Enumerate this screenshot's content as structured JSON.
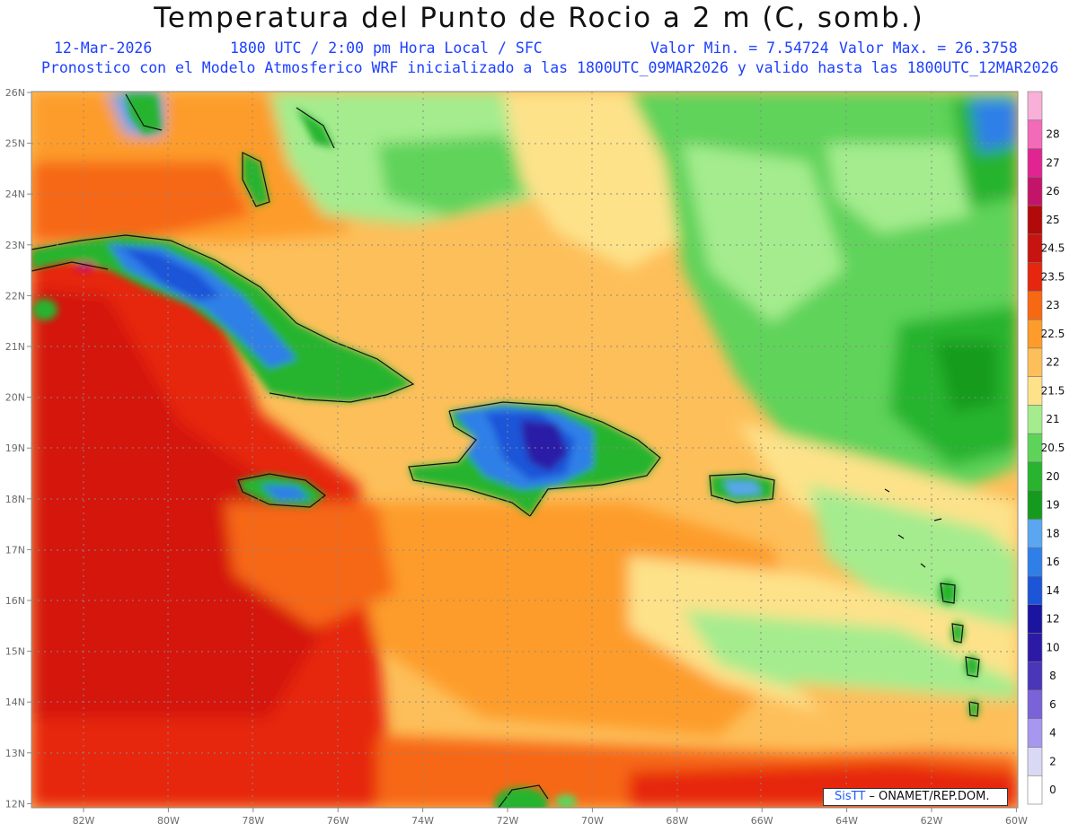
{
  "title": "Temperatura del Punto de Rocio a 2 m (C, somb.)",
  "date": "12-Mar-2026",
  "time": "1800 UTC / 2:00 pm Hora Local / SFC",
  "min_label": "Valor Min. = 7.54724",
  "max_label": "Valor Max. = 26.3758",
  "model_line": "Pronostico con el Modelo Atmosferico WRF inicializado a las 1800UTC_09MAR2026 y valido hasta las  1800UTC_12MAR2026",
  "credit": {
    "brand": "SisTT",
    "org": " – ONAMET/REP.DOM."
  },
  "lon_labels": [
    "82W",
    "80W",
    "78W",
    "76W",
    "74W",
    "72W",
    "70W",
    "68W",
    "66W",
    "64W",
    "62W",
    "60W"
  ],
  "lat_labels": [
    "26N",
    "25N",
    "24N",
    "23N",
    "22N",
    "21N",
    "20N",
    "19N",
    "18N",
    "17N",
    "16N",
    "15N",
    "14N",
    "13N",
    "12N"
  ],
  "colorbar": [
    {
      "label": "0",
      "color": "#ffffff"
    },
    {
      "label": "2",
      "color": "#d9d9f5"
    },
    {
      "label": "4",
      "color": "#a897f0"
    },
    {
      "label": "6",
      "color": "#7a62d8"
    },
    {
      "label": "8",
      "color": "#4a36b8"
    },
    {
      "label": "10",
      "color": "#2c1aa6"
    },
    {
      "label": "12",
      "color": "#1a14a0"
    },
    {
      "label": "14",
      "color": "#1c55d8"
    },
    {
      "label": "16",
      "color": "#2f7fe8"
    },
    {
      "label": "18",
      "color": "#5aa6f0"
    },
    {
      "label": "19",
      "color": "#149b1e"
    },
    {
      "label": "20",
      "color": "#28b42e"
    },
    {
      "label": "20.5",
      "color": "#5ed35a"
    },
    {
      "label": "21",
      "color": "#a4ec8e"
    },
    {
      "label": "21.5",
      "color": "#fde28a"
    },
    {
      "label": "22",
      "color": "#fdbf5a"
    },
    {
      "label": "22.5",
      "color": "#fd9c2a"
    },
    {
      "label": "23",
      "color": "#f66812"
    },
    {
      "label": "23.5",
      "color": "#e6260f"
    },
    {
      "label": "24.5",
      "color": "#c81410"
    },
    {
      "label": "25",
      "color": "#b20a0a"
    },
    {
      "label": "26",
      "color": "#c4146a"
    },
    {
      "label": "27",
      "color": "#e22492"
    },
    {
      "label": "28",
      "color": "#f26ab8"
    },
    {
      "label": "",
      "color": "#f8b0d8"
    }
  ]
}
